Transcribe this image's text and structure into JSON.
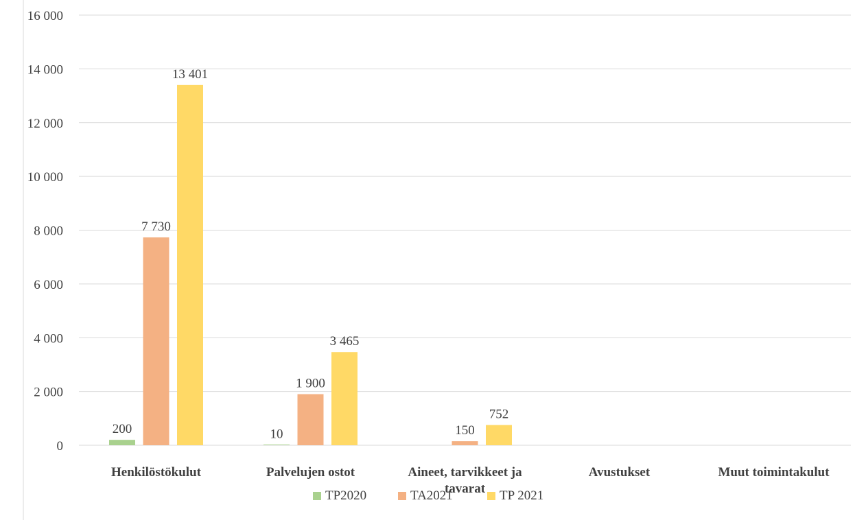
{
  "chart_data": {
    "type": "bar",
    "categories": [
      "Henkilöstökulut",
      "Palvelujen ostot",
      "Aineet, tarvikkeet ja tavarat",
      "Avustukset",
      "Muut toimintakulut"
    ],
    "category_lines": [
      [
        "Henkilöstökulut"
      ],
      [
        "Palvelujen ostot"
      ],
      [
        "Aineet, tarvikkeet ja",
        "tavarat"
      ],
      [
        "Avustukset"
      ],
      [
        "Muut toimintakulut"
      ]
    ],
    "series": [
      {
        "name": "TP2020",
        "color": "#a9d18e",
        "values": [
          200,
          10,
          null,
          null,
          null
        ],
        "labels": [
          "200",
          "10",
          "",
          "",
          ""
        ]
      },
      {
        "name": "TA2021",
        "color": "#f4b183",
        "values": [
          7730,
          1900,
          150,
          null,
          null
        ],
        "labels": [
          "7 730",
          "1 900",
          "150",
          "",
          ""
        ]
      },
      {
        "name": "TP 2021",
        "color": "#ffd966",
        "values": [
          13401,
          3465,
          752,
          null,
          null
        ],
        "labels": [
          "13 401",
          "3 465",
          "752",
          "",
          ""
        ]
      }
    ],
    "yticks": [
      0,
      2000,
      4000,
      6000,
      8000,
      10000,
      12000,
      14000,
      16000
    ],
    "ytick_labels": [
      "0",
      "2 000",
      "4 000",
      "6 000",
      "8 000",
      "10 000",
      "12 000",
      "14 000",
      "16 000"
    ],
    "ylim": [
      0,
      16000
    ],
    "grid": true,
    "legend_position": "bottom"
  }
}
